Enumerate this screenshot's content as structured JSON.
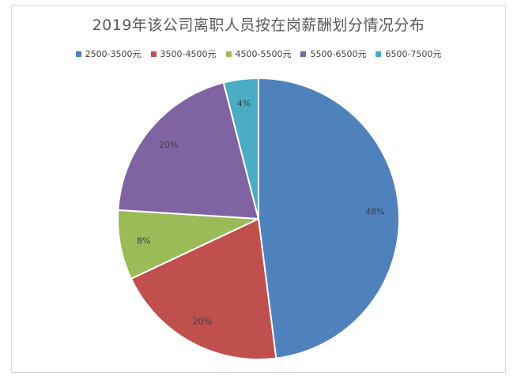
{
  "chart_data": {
    "type": "pie",
    "title": "2019年该公司离职人员按在岗薪酬划分情况分布",
    "categories": [
      "2500-3500元",
      "3500-4500元",
      "4500-5500元",
      "5500-6500元",
      "6500-7500元"
    ],
    "values": [
      48,
      20,
      8,
      20,
      4
    ],
    "labels": [
      "48%",
      "20%",
      "8%",
      "20%",
      "4%"
    ],
    "colors": [
      "#4f81bd",
      "#c0504d",
      "#9bbb59",
      "#8064a2",
      "#4bacc6"
    ],
    "legend_position": "top",
    "start_angle": "12 o'clock, clockwise"
  }
}
